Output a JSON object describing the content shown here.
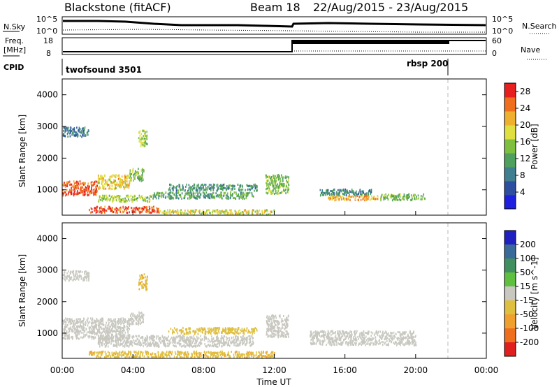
{
  "header": {
    "title": "Blackstone (fitACF)",
    "beam": "Beam 18",
    "date_range": "22/Aug/2015 - 23/Aug/2015"
  },
  "summary_panels": {
    "nsky_label": "N.Sky",
    "nsearch_label": "N.Search",
    "nsky_left_ticks": [
      "10^5",
      "10^0"
    ],
    "nsky_right_ticks": [
      "10^5",
      "10^0"
    ],
    "freq_label_1": "Freq.",
    "freq_label_2": "[MHz]",
    "freq_ticks": [
      "18",
      "8"
    ],
    "nave_label": "Nave",
    "nave_ticks": [
      "60",
      "0"
    ],
    "cpid_label": "CPID",
    "cpid_1": "twofsound 3501",
    "cpid_2": "rbsp 200"
  },
  "colors": {
    "power_scale": [
      "#1f1fe0",
      "#2e4fa0",
      "#3f7f8f",
      "#4f9f5f",
      "#7fbf3f",
      "#dfdf3f",
      "#efaf2f",
      "#ef6f1f",
      "#e81f1f"
    ],
    "velocity_scale": [
      "#2020c0",
      "#3a6a9a",
      "#3f8f5f",
      "#5fbf3f",
      "#c8c8c0",
      "#dfbf3f",
      "#efa02f",
      "#ef6f1f",
      "#e01f1f"
    ]
  },
  "chart_data": [
    {
      "type": "heatmap",
      "panel": "power",
      "ylabel": "Slant Range [km]",
      "yticks": [
        "1000",
        "2000",
        "3000",
        "4000"
      ],
      "ylim": [
        200,
        4500
      ],
      "colorbar_label": "Power [dB]",
      "colorbar_ticks": [
        "4",
        "8",
        "12",
        "16",
        "20",
        "24",
        "28"
      ],
      "colorbar_range": [
        0,
        30
      ],
      "regions": [
        {
          "t0": 0.0,
          "t1": 2.0,
          "r0": 850,
          "r1": 1300,
          "value": 26
        },
        {
          "t0": 2.0,
          "t1": 3.8,
          "r0": 1050,
          "r1": 1500,
          "value": 20
        },
        {
          "t0": 3.8,
          "t1": 4.6,
          "r0": 1300,
          "r1": 1700,
          "value": 14
        },
        {
          "t0": 1.5,
          "t1": 5.5,
          "r0": 300,
          "r1": 500,
          "value": 26
        },
        {
          "t0": 5.5,
          "t1": 12.0,
          "r0": 250,
          "r1": 400,
          "value": 18
        },
        {
          "t0": 2.0,
          "t1": 5.0,
          "r0": 650,
          "r1": 850,
          "value": 16
        },
        {
          "t0": 5.0,
          "t1": 10.8,
          "r0": 750,
          "r1": 950,
          "value": 12
        },
        {
          "t0": 6.0,
          "t1": 11.0,
          "r0": 1000,
          "r1": 1200,
          "value": 10
        },
        {
          "t0": 11.5,
          "t1": 12.8,
          "r0": 900,
          "r1": 1500,
          "value": 14
        },
        {
          "t0": 14.5,
          "t1": 17.5,
          "r0": 850,
          "r1": 1050,
          "value": 9
        },
        {
          "t0": 15.0,
          "t1": 18.0,
          "r0": 700,
          "r1": 850,
          "value": 22
        },
        {
          "t0": 18.0,
          "t1": 20.5,
          "r0": 700,
          "r1": 900,
          "value": 14
        },
        {
          "t0": 0.0,
          "t1": 1.5,
          "r0": 2700,
          "r1": 3000,
          "value": 8
        },
        {
          "t0": 4.3,
          "t1": 4.8,
          "r0": 2400,
          "r1": 2900,
          "value": 16
        }
      ]
    },
    {
      "type": "heatmap",
      "panel": "velocity",
      "ylabel": "Slant Range [km]",
      "yticks": [
        "1000",
        "2000",
        "3000",
        "4000"
      ],
      "ylim": [
        200,
        4500
      ],
      "xlabel": "Time UT",
      "xticks": [
        "00:00",
        "04:00",
        "08:00",
        "12:00",
        "16:00",
        "20:00",
        "00:00"
      ],
      "xlim": [
        0,
        24
      ],
      "colorbar_label": "Velocity [m s^-1]",
      "colorbar_ticks": [
        "200",
        "100",
        "50",
        "15",
        "-15",
        "-50",
        "-100",
        "-200"
      ],
      "regions": [
        {
          "t0": 0.0,
          "t1": 3.8,
          "r0": 850,
          "r1": 1500,
          "value": 0
        },
        {
          "t0": 3.8,
          "t1": 4.6,
          "r0": 1300,
          "r1": 1700,
          "value": 0
        },
        {
          "t0": 1.5,
          "t1": 12.0,
          "r0": 250,
          "r1": 450,
          "value": -40
        },
        {
          "t0": 2.0,
          "t1": 10.8,
          "r0": 600,
          "r1": 950,
          "value": 0
        },
        {
          "t0": 6.0,
          "t1": 11.0,
          "r0": 1000,
          "r1": 1200,
          "value": -30
        },
        {
          "t0": 11.5,
          "t1": 12.8,
          "r0": 900,
          "r1": 1600,
          "value": 0
        },
        {
          "t0": 14.0,
          "t1": 20.0,
          "r0": 650,
          "r1": 1100,
          "value": 0
        },
        {
          "t0": 0.0,
          "t1": 1.5,
          "r0": 2700,
          "r1": 3000,
          "value": 0
        },
        {
          "t0": 4.3,
          "t1": 4.8,
          "r0": 2400,
          "r1": 2900,
          "value": -40
        }
      ]
    }
  ]
}
